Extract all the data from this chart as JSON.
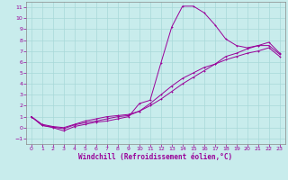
{
  "title": "",
  "xlabel": "Windchill (Refroidissement éolien,°C)",
  "bg_color": "#c8ecec",
  "grid_color": "#a8d8d8",
  "line_color": "#990099",
  "spine_color": "#888888",
  "xlim": [
    -0.5,
    23.5
  ],
  "ylim": [
    -1.5,
    11.5
  ],
  "xticks": [
    0,
    1,
    2,
    3,
    4,
    5,
    6,
    7,
    8,
    9,
    10,
    11,
    12,
    13,
    14,
    15,
    16,
    17,
    18,
    19,
    20,
    21,
    22,
    23
  ],
  "yticks": [
    -1,
    0,
    1,
    2,
    3,
    4,
    5,
    6,
    7,
    8,
    9,
    10,
    11
  ],
  "curve1_x": [
    0,
    1,
    2,
    3,
    4,
    5,
    6,
    7,
    8,
    9,
    10,
    11,
    12,
    13,
    14,
    15,
    16,
    17,
    18,
    19,
    20,
    21,
    22,
    23
  ],
  "curve1_y": [
    1.0,
    0.2,
    0.0,
    -0.3,
    0.1,
    0.3,
    0.5,
    0.6,
    0.8,
    1.0,
    2.2,
    2.5,
    5.9,
    9.2,
    11.1,
    11.1,
    10.5,
    9.4,
    8.1,
    7.5,
    7.3,
    7.5,
    7.5,
    6.7
  ],
  "curve2_x": [
    0,
    1,
    2,
    3,
    4,
    5,
    6,
    7,
    8,
    9,
    10,
    11,
    12,
    13,
    14,
    15,
    16,
    17,
    18,
    19,
    20,
    21,
    22,
    23
  ],
  "curve2_y": [
    1.0,
    0.2,
    0.05,
    -0.1,
    0.25,
    0.45,
    0.6,
    0.8,
    1.0,
    1.1,
    1.5,
    2.2,
    3.0,
    3.8,
    4.5,
    5.0,
    5.5,
    5.8,
    6.5,
    6.8,
    7.2,
    7.5,
    7.8,
    6.8
  ],
  "curve3_x": [
    0,
    1,
    2,
    3,
    4,
    5,
    6,
    7,
    8,
    9,
    10,
    11,
    12,
    13,
    14,
    15,
    16,
    17,
    18,
    19,
    20,
    21,
    22,
    23
  ],
  "curve3_y": [
    1.0,
    0.3,
    0.1,
    0.0,
    0.3,
    0.6,
    0.8,
    1.0,
    1.1,
    1.2,
    1.5,
    2.0,
    2.6,
    3.3,
    4.0,
    4.6,
    5.2,
    5.8,
    6.2,
    6.5,
    6.8,
    7.0,
    7.3,
    6.5
  ]
}
